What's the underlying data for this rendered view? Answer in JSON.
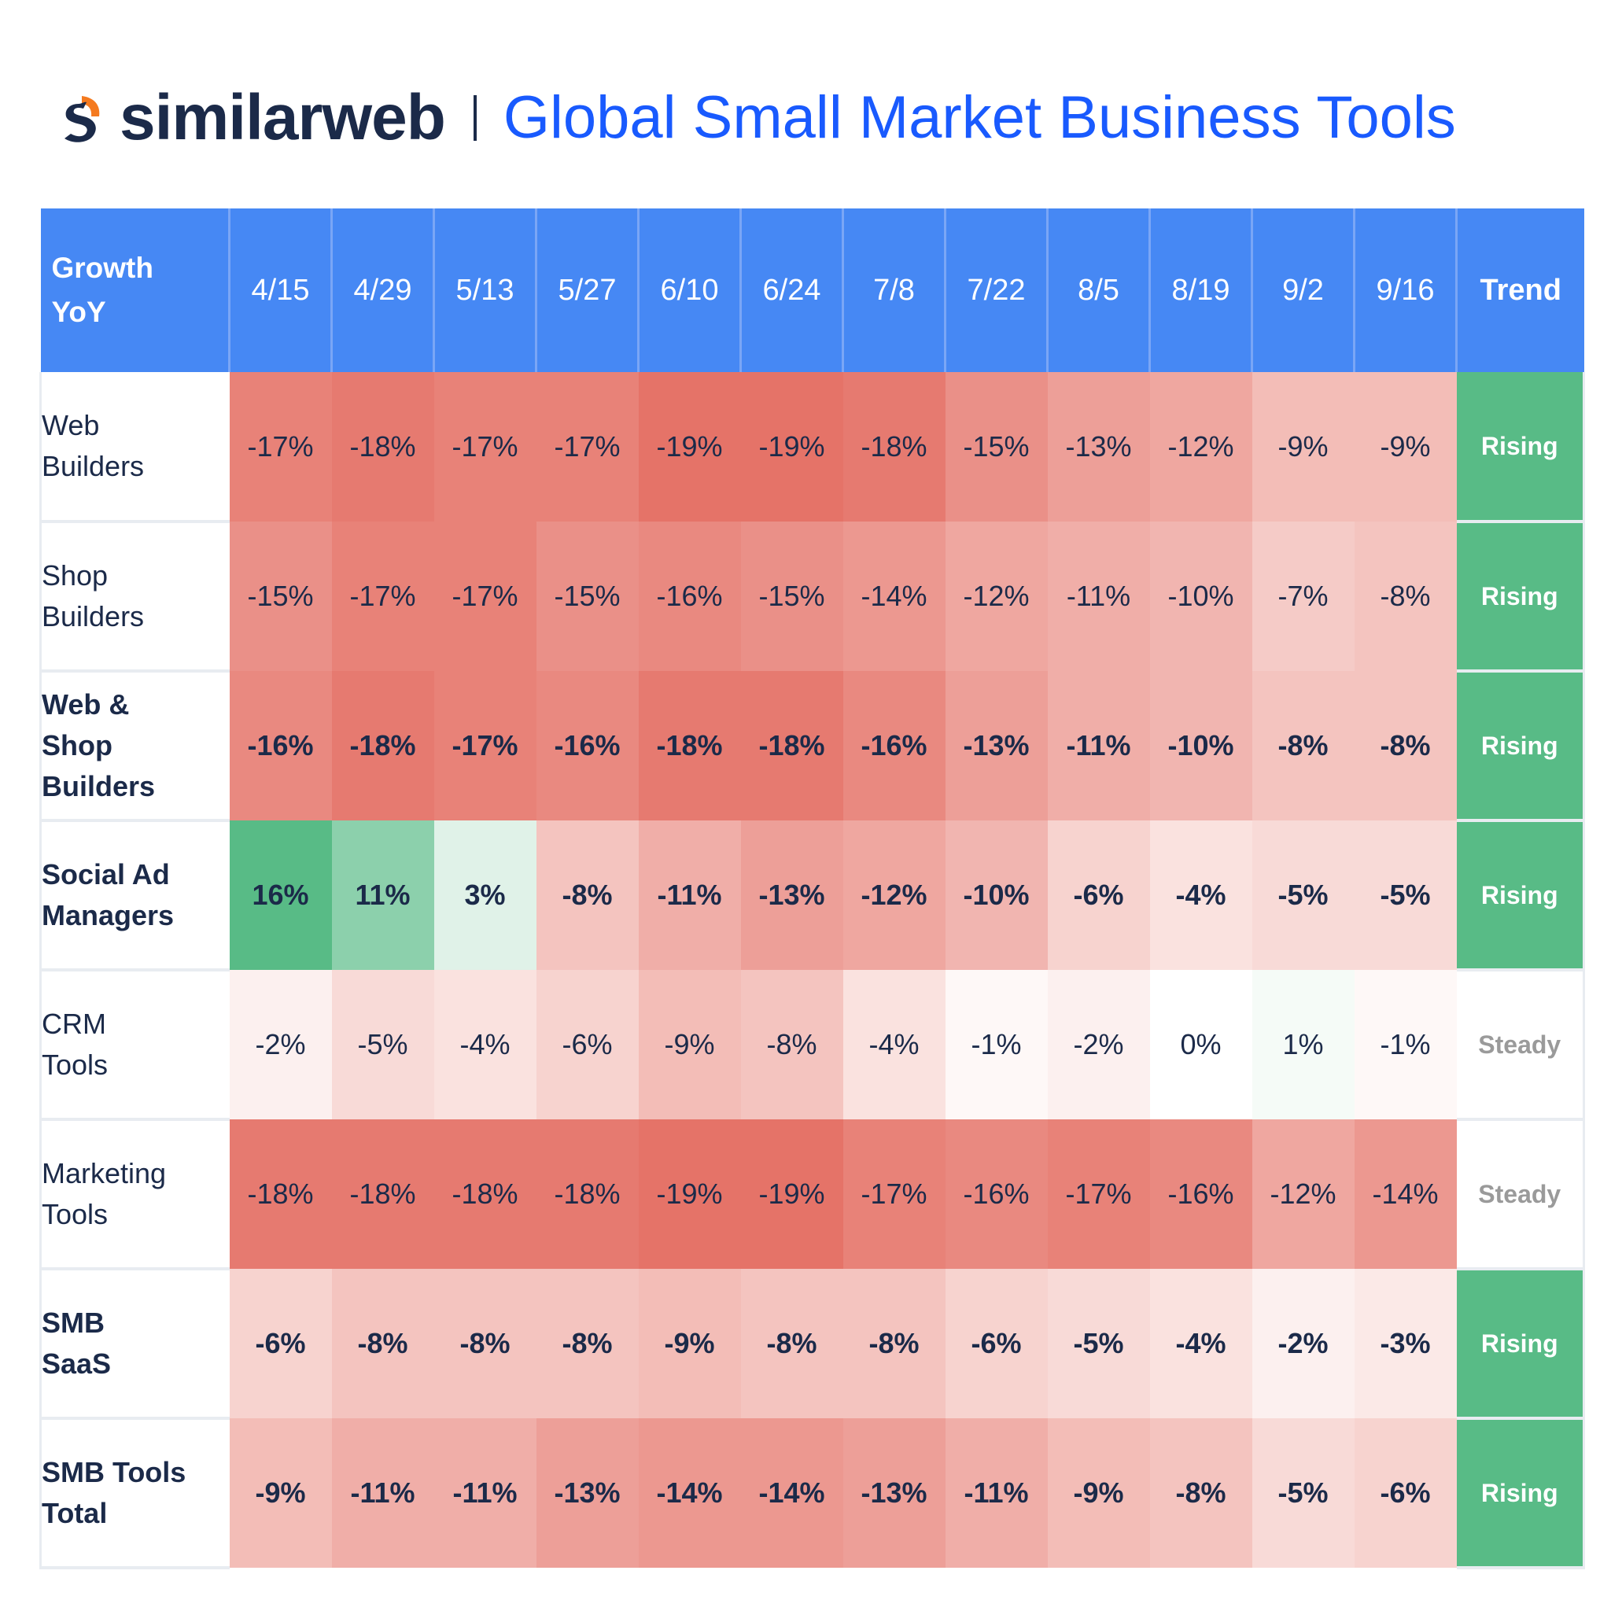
{
  "header": {
    "brand": "similarweb",
    "title": "Global Small Market Business Tools"
  },
  "chart_data": {
    "type": "heatmap",
    "title": "Global Small Market Business Tools",
    "corner_label": [
      "Growth",
      "YoY"
    ],
    "columns": [
      "4/15",
      "4/29",
      "5/13",
      "5/27",
      "6/10",
      "6/24",
      "7/8",
      "7/22",
      "8/5",
      "8/19",
      "9/2",
      "9/16"
    ],
    "trend_header": "Trend",
    "unit": "%",
    "rows": [
      {
        "label": [
          "Web",
          "Builders"
        ],
        "bold": false,
        "values": [
          -17,
          -18,
          -17,
          -17,
          -19,
          -19,
          -18,
          -15,
          -13,
          -12,
          -9,
          -9
        ],
        "trend": "Rising"
      },
      {
        "label": [
          "Shop",
          "Builders"
        ],
        "bold": false,
        "values": [
          -15,
          -17,
          -17,
          -15,
          -16,
          -15,
          -14,
          -12,
          -11,
          -10,
          -7,
          -8
        ],
        "trend": "Rising"
      },
      {
        "label": [
          "Web &",
          "Shop",
          "Builders"
        ],
        "bold": true,
        "values": [
          -16,
          -18,
          -17,
          -16,
          -18,
          -18,
          -16,
          -13,
          -11,
          -10,
          -8,
          -8
        ],
        "trend": "Rising"
      },
      {
        "label": [
          "Social Ad",
          "Managers"
        ],
        "bold": true,
        "values": [
          16,
          11,
          3,
          -8,
          -11,
          -13,
          -12,
          -10,
          -6,
          -4,
          -5,
          -5
        ],
        "trend": "Rising"
      },
      {
        "label": [
          "CRM",
          "Tools"
        ],
        "bold": false,
        "values": [
          -2,
          -5,
          -4,
          -6,
          -9,
          -8,
          -4,
          -1,
          -2,
          0,
          1,
          -1
        ],
        "trend": "Steady"
      },
      {
        "label": [
          "Marketing",
          "Tools"
        ],
        "bold": false,
        "values": [
          -18,
          -18,
          -18,
          -18,
          -19,
          -19,
          -17,
          -16,
          -17,
          -16,
          -12,
          -14
        ],
        "trend": "Steady"
      },
      {
        "label": [
          "SMB",
          "SaaS"
        ],
        "bold": true,
        "values": [
          -6,
          -8,
          -8,
          -8,
          -9,
          -8,
          -8,
          -6,
          -5,
          -4,
          -2,
          -3
        ],
        "trend": "Rising"
      },
      {
        "label": [
          "SMB Tools",
          "Total"
        ],
        "bold": true,
        "values": [
          -9,
          -11,
          -11,
          -13,
          -14,
          -14,
          -13,
          -11,
          -9,
          -8,
          -5,
          -6
        ],
        "trend": "Rising"
      }
    ],
    "colors": {
      "negative_max": "#e57368",
      "positive_max": "#58bb86",
      "neutral": "#ffffff",
      "header_bg": "#4688f4",
      "title": "#195afe",
      "text": "#1b2a49"
    }
  }
}
